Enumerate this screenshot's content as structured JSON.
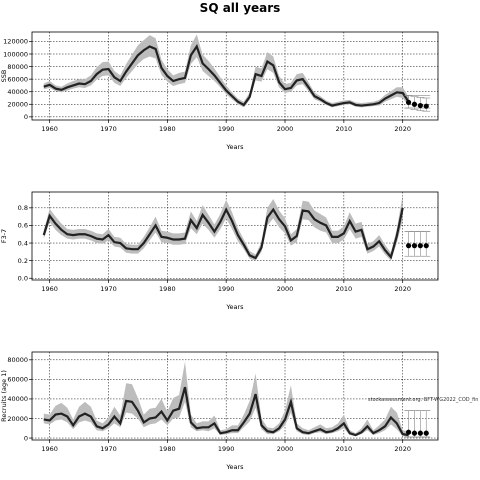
{
  "title": "SQ all years",
  "watermark": "stockassessment.org: BFT-WG2022_COD_fin",
  "chart_data": [
    {
      "type": "area",
      "ylabel": "SSB",
      "xlabel": "Years",
      "xlim": [
        1957,
        2026
      ],
      "ylim": [
        -5000,
        135000
      ],
      "xticks": [
        1960,
        1970,
        1980,
        1990,
        2000,
        2010,
        2020
      ],
      "yticks": [
        0,
        20000,
        40000,
        60000,
        80000,
        100000,
        120000
      ],
      "grid": true,
      "years": [
        1959,
        1960,
        1961,
        1962,
        1963,
        1964,
        1965,
        1966,
        1967,
        1968,
        1969,
        1970,
        1971,
        1972,
        1973,
        1974,
        1975,
        1976,
        1977,
        1978,
        1979,
        1980,
        1981,
        1982,
        1983,
        1984,
        1985,
        1986,
        1987,
        1988,
        1989,
        1990,
        1991,
        1992,
        1993,
        1994,
        1995,
        1996,
        1997,
        1998,
        1999,
        2000,
        2001,
        2002,
        2003,
        2004,
        2005,
        2006,
        2007,
        2008,
        2009,
        2010,
        2011,
        2012,
        2013,
        2014,
        2015,
        2016,
        2017,
        2018,
        2019,
        2020,
        2021
      ],
      "median": [
        48000,
        51000,
        45000,
        43000,
        47000,
        50000,
        53000,
        52000,
        57000,
        68000,
        75000,
        76000,
        63000,
        57000,
        72000,
        85000,
        98000,
        106000,
        112000,
        108000,
        78000,
        65000,
        57000,
        60000,
        62000,
        98000,
        112000,
        85000,
        76000,
        66000,
        54000,
        42000,
        33000,
        24000,
        19000,
        32000,
        68000,
        65000,
        88000,
        82000,
        55000,
        44000,
        46000,
        58000,
        60000,
        47000,
        33000,
        28000,
        22000,
        18000,
        20000,
        22000,
        23000,
        19000,
        18000,
        19000,
        20000,
        22000,
        29000,
        34000,
        39000,
        38000,
        24000
      ],
      "lower": [
        44000,
        46000,
        41000,
        39000,
        42000,
        45000,
        47000,
        46000,
        50000,
        59000,
        65000,
        66000,
        54000,
        49000,
        62000,
        73000,
        84000,
        92000,
        96000,
        93000,
        67000,
        56000,
        49000,
        52000,
        54000,
        84000,
        95000,
        73000,
        65000,
        57000,
        47000,
        36000,
        28000,
        20000,
        15000,
        27000,
        58000,
        56000,
        76000,
        70000,
        47000,
        38000,
        40000,
        50000,
        52000,
        41000,
        28000,
        24000,
        19000,
        15000,
        17000,
        19000,
        20000,
        16000,
        15000,
        16000,
        17000,
        18000,
        24000,
        28000,
        32000,
        30000,
        17000
      ],
      "upper": [
        53000,
        57000,
        50000,
        48000,
        53000,
        57000,
        60000,
        60000,
        66000,
        79000,
        87000,
        88000,
        73000,
        66000,
        84000,
        99000,
        114000,
        122000,
        130000,
        125000,
        91000,
        76000,
        66000,
        70000,
        72000,
        114000,
        131000,
        99000,
        89000,
        77000,
        63000,
        50000,
        39000,
        29000,
        24000,
        39000,
        80000,
        77000,
        103000,
        96000,
        65000,
        52000,
        54000,
        68000,
        70000,
        55000,
        39000,
        33000,
        26000,
        22000,
        24000,
        26000,
        27000,
        23000,
        22000,
        23000,
        24000,
        27000,
        35000,
        41000,
        47000,
        47000,
        32000
      ],
      "forecast": {
        "years": [
          2021,
          2022,
          2023,
          2024
        ],
        "median": [
          23000,
          20000,
          18000,
          17000
        ],
        "lower": [
          14000,
          12000,
          10000,
          9000
        ],
        "upper": [
          34000,
          32000,
          31000,
          30000
        ]
      }
    },
    {
      "type": "area",
      "ylabel": "F3-7",
      "xlabel": "Years",
      "xlim": [
        1957,
        2026
      ],
      "ylim": [
        -0.02,
        0.98
      ],
      "xticks": [
        1960,
        1970,
        1980,
        1990,
        2000,
        2010,
        2020
      ],
      "yticks": [
        0.0,
        0.2,
        0.4,
        0.6,
        0.8
      ],
      "ytick_labels": [
        "0.0",
        "0.2",
        "0.4",
        "0.6",
        "0.8"
      ],
      "grid": true,
      "years": [
        1959,
        1960,
        1961,
        1962,
        1963,
        1964,
        1965,
        1966,
        1967,
        1968,
        1969,
        1970,
        1971,
        1972,
        1973,
        1974,
        1975,
        1976,
        1977,
        1978,
        1979,
        1980,
        1981,
        1982,
        1983,
        1984,
        1985,
        1986,
        1987,
        1988,
        1989,
        1990,
        1991,
        1992,
        1993,
        1994,
        1995,
        1996,
        1997,
        1998,
        1999,
        2000,
        2001,
        2002,
        2003,
        2004,
        2005,
        2006,
        2007,
        2008,
        2009,
        2010,
        2011,
        2012,
        2013,
        2014,
        2015,
        2016,
        2017,
        2018,
        2019,
        2020
      ],
      "median": [
        0.49,
        0.71,
        0.62,
        0.55,
        0.5,
        0.49,
        0.5,
        0.5,
        0.48,
        0.45,
        0.44,
        0.49,
        0.41,
        0.4,
        0.34,
        0.33,
        0.33,
        0.4,
        0.5,
        0.6,
        0.47,
        0.46,
        0.44,
        0.44,
        0.45,
        0.66,
        0.57,
        0.72,
        0.63,
        0.53,
        0.64,
        0.78,
        0.65,
        0.49,
        0.38,
        0.26,
        0.23,
        0.35,
        0.69,
        0.78,
        0.67,
        0.59,
        0.43,
        0.48,
        0.77,
        0.76,
        0.67,
        0.63,
        0.6,
        0.47,
        0.47,
        0.51,
        0.65,
        0.53,
        0.55,
        0.33,
        0.36,
        0.42,
        0.32,
        0.24,
        0.48,
        0.8
      ],
      "lower": [
        0.45,
        0.64,
        0.55,
        0.49,
        0.45,
        0.44,
        0.45,
        0.45,
        0.43,
        0.4,
        0.39,
        0.43,
        0.36,
        0.35,
        0.29,
        0.28,
        0.28,
        0.34,
        0.43,
        0.52,
        0.41,
        0.4,
        0.38,
        0.38,
        0.39,
        0.57,
        0.5,
        0.62,
        0.55,
        0.46,
        0.56,
        0.68,
        0.56,
        0.42,
        0.33,
        0.22,
        0.2,
        0.3,
        0.6,
        0.68,
        0.58,
        0.51,
        0.37,
        0.41,
        0.67,
        0.66,
        0.58,
        0.54,
        0.52,
        0.4,
        0.4,
        0.44,
        0.56,
        0.45,
        0.47,
        0.28,
        0.31,
        0.36,
        0.27,
        0.2,
        0.4,
        0.66
      ],
      "upper": [
        0.54,
        0.79,
        0.7,
        0.62,
        0.56,
        0.55,
        0.56,
        0.56,
        0.54,
        0.51,
        0.5,
        0.56,
        0.47,
        0.46,
        0.39,
        0.38,
        0.38,
        0.47,
        0.58,
        0.7,
        0.54,
        0.53,
        0.51,
        0.51,
        0.52,
        0.76,
        0.65,
        0.83,
        0.72,
        0.61,
        0.73,
        0.89,
        0.75,
        0.57,
        0.44,
        0.31,
        0.27,
        0.41,
        0.8,
        0.9,
        0.77,
        0.68,
        0.5,
        0.56,
        0.88,
        0.87,
        0.77,
        0.73,
        0.69,
        0.54,
        0.54,
        0.59,
        0.75,
        0.62,
        0.64,
        0.39,
        0.42,
        0.49,
        0.38,
        0.29,
        0.56,
        0.95
      ],
      "forecast": {
        "years": [
          2021,
          2022,
          2023,
          2024
        ],
        "median": [
          0.37,
          0.37,
          0.37,
          0.37
        ],
        "lower": [
          0.25,
          0.25,
          0.25,
          0.25
        ],
        "upper": [
          0.53,
          0.53,
          0.53,
          0.53
        ]
      }
    },
    {
      "type": "area",
      "ylabel": "Recruits (age 1)",
      "xlabel": "Years",
      "xlim": [
        1957,
        2026
      ],
      "ylim": [
        -2000,
        88000
      ],
      "xticks": [
        1960,
        1970,
        1980,
        1990,
        2000,
        2010,
        2020
      ],
      "yticks": [
        0,
        20000,
        40000,
        60000,
        80000
      ],
      "grid": true,
      "years": [
        1959,
        1960,
        1961,
        1962,
        1963,
        1964,
        1965,
        1966,
        1967,
        1968,
        1969,
        1970,
        1971,
        1972,
        1973,
        1974,
        1975,
        1976,
        1977,
        1978,
        1979,
        1980,
        1981,
        1982,
        1983,
        1984,
        1985,
        1986,
        1987,
        1988,
        1989,
        1990,
        1991,
        1992,
        1993,
        1994,
        1995,
        1996,
        1997,
        1998,
        1999,
        2000,
        2001,
        2002,
        2003,
        2004,
        2005,
        2006,
        2007,
        2008,
        2009,
        2010,
        2011,
        2012,
        2013,
        2014,
        2015,
        2016,
        2017,
        2018,
        2019,
        2020,
        2021
      ],
      "median": [
        19000,
        18000,
        24000,
        25000,
        22000,
        13000,
        22000,
        25000,
        22000,
        12000,
        10000,
        14000,
        22000,
        15000,
        38000,
        37000,
        28000,
        16000,
        20000,
        21000,
        27000,
        18000,
        28000,
        30000,
        52000,
        16000,
        10000,
        11000,
        11000,
        15000,
        5000,
        6000,
        8000,
        8000,
        16000,
        25000,
        45000,
        13000,
        7000,
        6000,
        10000,
        19000,
        37000,
        10000,
        6000,
        5000,
        7000,
        9000,
        6000,
        7000,
        10000,
        15000,
        5000,
        3000,
        6000,
        12000,
        5000,
        8000,
        12000,
        21000,
        15000,
        4000,
        3000
      ],
      "lower": [
        15000,
        14000,
        18000,
        19000,
        16000,
        9000,
        16000,
        18000,
        16000,
        8000,
        7000,
        10000,
        15000,
        11000,
        26000,
        25000,
        20000,
        11000,
        14000,
        15000,
        19000,
        13000,
        20000,
        21000,
        37000,
        11000,
        7000,
        8000,
        7000,
        10000,
        3000,
        4000,
        5000,
        5000,
        11000,
        17000,
        31000,
        9000,
        4000,
        4000,
        7000,
        13000,
        26000,
        7000,
        4000,
        3000,
        5000,
        6000,
        4000,
        5000,
        7000,
        10000,
        3000,
        2000,
        4000,
        8000,
        3000,
        5000,
        8000,
        14000,
        9000,
        2000,
        1500
      ],
      "upper": [
        25000,
        24000,
        33000,
        36000,
        31000,
        19000,
        32000,
        37000,
        32000,
        18000,
        15000,
        21000,
        32000,
        23000,
        56000,
        55000,
        41000,
        24000,
        30000,
        31000,
        40000,
        27000,
        41000,
        44000,
        78000,
        24000,
        15000,
        17000,
        17000,
        23000,
        8000,
        9000,
        13000,
        13000,
        24000,
        38000,
        66000,
        20000,
        11000,
        10000,
        15000,
        28000,
        54000,
        15000,
        10000,
        8000,
        11000,
        14000,
        10000,
        11000,
        15000,
        24000,
        8000,
        5000,
        10000,
        19000,
        8000,
        13000,
        19000,
        32000,
        26000,
        8000,
        7000
      ],
      "forecast": {
        "years": [
          2021,
          2022,
          2023,
          2024
        ],
        "median": [
          6000,
          5000,
          5000,
          5000
        ],
        "lower": [
          1000,
          1000,
          1000,
          1000
        ],
        "upper": [
          28000,
          28000,
          28000,
          28000
        ]
      }
    }
  ]
}
